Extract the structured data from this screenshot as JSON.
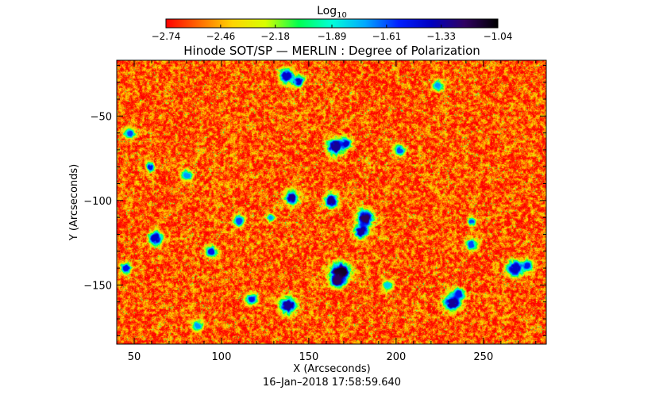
{
  "chart_data": {
    "type": "heatmap",
    "title": "Hinode SOT/SP — MERLIN : Degree of Polarization",
    "xlabel": "X (Arcseconds)",
    "ylabel": "Y (Arcseconds)",
    "timestamp": "16–Jan–2018 17:58:59.640",
    "xlim": [
      40,
      286
    ],
    "ylim": [
      -185,
      -17
    ],
    "x_ticks": [
      50,
      100,
      150,
      200,
      250
    ],
    "y_ticks": [
      -50,
      -100,
      -150
    ],
    "x_tick_labels": [
      "50",
      "100",
      "150",
      "200",
      "250"
    ],
    "y_tick_labels": [
      "−50",
      "−100",
      "−150"
    ],
    "colorbar": {
      "label_base": "Log",
      "label_sub": "10",
      "range": [
        -2.74,
        -1.04
      ],
      "tick_values": [
        -2.74,
        -2.46,
        -2.18,
        -1.89,
        -1.61,
        -1.33,
        -1.04
      ],
      "tick_labels": [
        "−2.74",
        "−2.46",
        "−2.18",
        "−1.89",
        "−1.61",
        "−1.33",
        "−1.04"
      ],
      "colors": [
        "#ff0000",
        "#ff6a00",
        "#ffd400",
        "#d8ff00",
        "#00ff50",
        "#00ffd8",
        "#00a8ff",
        "#0020ff",
        "#0000c0",
        "#300060",
        "#000000"
      ]
    },
    "field": {
      "background_level": -2.6,
      "noise": 0.33,
      "patches": [
        {
          "x": 62,
          "y": -122,
          "r": 2.5,
          "v": -1.4
        },
        {
          "x": 59,
          "y": -80,
          "r": 1.5,
          "v": -1.5
        },
        {
          "x": 94,
          "y": -130,
          "r": 2.0,
          "v": -1.5
        },
        {
          "x": 137,
          "y": -26,
          "r": 2.5,
          "v": -1.4
        },
        {
          "x": 144,
          "y": -29,
          "r": 2.0,
          "v": -1.4
        },
        {
          "x": 165,
          "y": -68,
          "r": 3.0,
          "v": -1.3
        },
        {
          "x": 171,
          "y": -66,
          "r": 2.0,
          "v": -1.4
        },
        {
          "x": 140,
          "y": -98,
          "r": 2.5,
          "v": -1.3
        },
        {
          "x": 163,
          "y": -100,
          "r": 2.5,
          "v": -1.3
        },
        {
          "x": 182,
          "y": -110,
          "r": 3.0,
          "v": -1.2
        },
        {
          "x": 180,
          "y": -118,
          "r": 2.5,
          "v": -1.3
        },
        {
          "x": 168,
          "y": -142,
          "r": 3.5,
          "v": -1.1
        },
        {
          "x": 166,
          "y": -147,
          "r": 2.5,
          "v": -1.2
        },
        {
          "x": 138,
          "y": -162,
          "r": 3.0,
          "v": -1.3
        },
        {
          "x": 117,
          "y": -158,
          "r": 2.0,
          "v": -1.5
        },
        {
          "x": 232,
          "y": -160,
          "r": 3.0,
          "v": -1.3
        },
        {
          "x": 236,
          "y": -155,
          "r": 2.0,
          "v": -1.5
        },
        {
          "x": 268,
          "y": -140,
          "r": 3.0,
          "v": -1.4
        },
        {
          "x": 275,
          "y": -138,
          "r": 2.0,
          "v": -1.5
        },
        {
          "x": 243,
          "y": -126,
          "r": 2.0,
          "v": -1.6
        },
        {
          "x": 110,
          "y": -112,
          "r": 2.0,
          "v": -1.6
        },
        {
          "x": 202,
          "y": -70,
          "r": 2.0,
          "v": -1.6
        },
        {
          "x": 80,
          "y": -85,
          "r": 2.0,
          "v": -1.7
        },
        {
          "x": 224,
          "y": -32,
          "r": 2.0,
          "v": -1.7
        },
        {
          "x": 47,
          "y": -60,
          "r": 2.0,
          "v": -1.6
        },
        {
          "x": 45,
          "y": -140,
          "r": 2.0,
          "v": -1.5
        },
        {
          "x": 243,
          "y": -112,
          "r": 1.5,
          "v": -1.6
        },
        {
          "x": 195,
          "y": -150,
          "r": 2.0,
          "v": -1.8
        },
        {
          "x": 128,
          "y": -110,
          "r": 1.5,
          "v": -1.7
        },
        {
          "x": 86,
          "y": -174,
          "r": 2.0,
          "v": -1.7
        }
      ]
    }
  }
}
